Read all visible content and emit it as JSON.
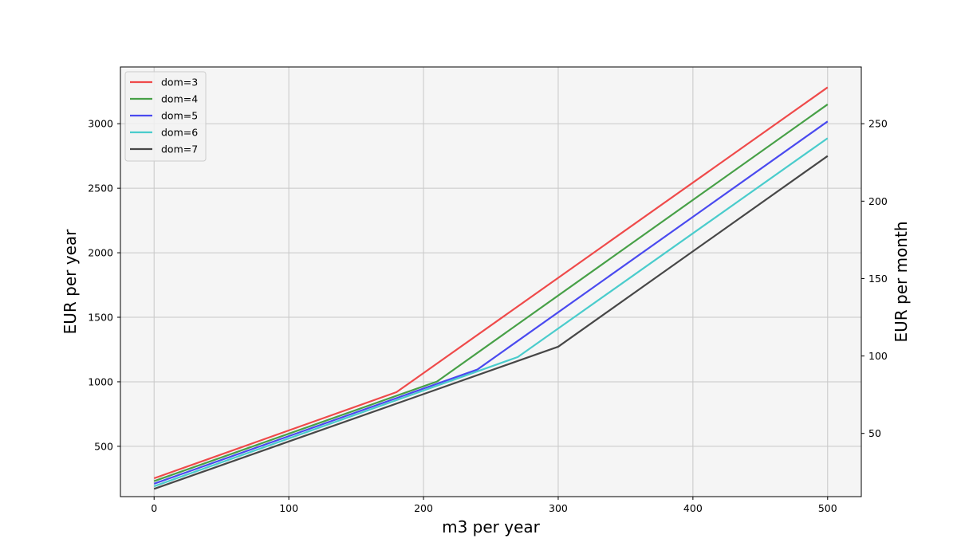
{
  "chart_data": {
    "type": "line",
    "xlabel": "m3 per year",
    "ylabel": "EUR per year",
    "ylabel_right": "EUR per month",
    "xlim": [
      -25,
      525
    ],
    "ylim": [
      110,
      3440
    ],
    "ylim_right": [
      9.17,
      286.67
    ],
    "x_ticks": [
      0,
      100,
      200,
      300,
      400,
      500
    ],
    "y_ticks": [
      500,
      1000,
      1500,
      2000,
      2500,
      3000
    ],
    "y_ticks_right": [
      50,
      100,
      150,
      200,
      250
    ],
    "grid": true,
    "legend_position": "top-left",
    "series": [
      {
        "name": "dom=3",
        "color": "#ef4a4a",
        "x": [
          0,
          180,
          500
        ],
        "y": [
          252,
          920,
          3282
        ]
      },
      {
        "name": "dom=4",
        "color": "#47a047",
        "x": [
          0,
          210,
          500
        ],
        "y": [
          230,
          1002,
          3150
        ]
      },
      {
        "name": "dom=5",
        "color": "#4a4aef",
        "x": [
          0,
          240,
          500
        ],
        "y": [
          210,
          1095,
          3018
        ]
      },
      {
        "name": "dom=6",
        "color": "#4acccc",
        "x": [
          0,
          270,
          500
        ],
        "y": [
          190,
          1192,
          2888
        ]
      },
      {
        "name": "dom=7",
        "color": "#474747",
        "x": [
          0,
          300,
          500
        ],
        "y": [
          170,
          1272,
          2750
        ]
      }
    ]
  }
}
